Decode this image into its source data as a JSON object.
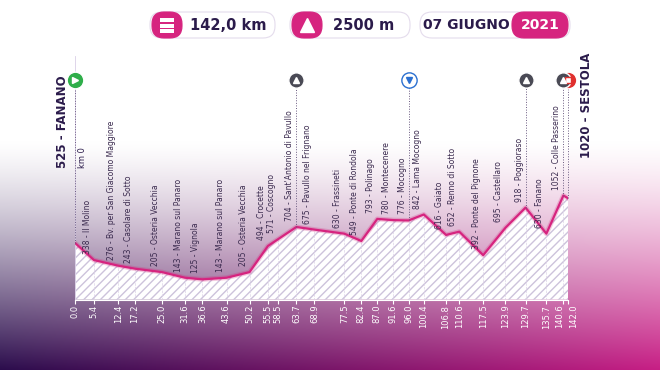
{
  "chart_data": {
    "type": "area",
    "header": {
      "distance": "142,0 km",
      "elevation_gain": "2500 m",
      "date": "07 GIUGNO",
      "year": "2021"
    },
    "start_note": "km 0",
    "x": [
      0.0,
      5.4,
      12.4,
      17.2,
      25.0,
      31.6,
      36.6,
      43.6,
      50.2,
      55.5,
      58.5,
      63.7,
      68.9,
      77.5,
      82.4,
      87.0,
      91.6,
      96.0,
      100.4,
      106.8,
      110.6,
      117.5,
      123.9,
      129.7,
      135.7,
      140.6,
      142.0
    ],
    "values": [
      525,
      338,
      276,
      243,
      205,
      143,
      125,
      143,
      205,
      494,
      571,
      704,
      675,
      630,
      549,
      793,
      780,
      776,
      842,
      616,
      652,
      392,
      695,
      918,
      630,
      1052,
      1020
    ],
    "annotations": [
      "525 - FANANO",
      "338 - Il Molino",
      "276 - Bv. per San Giacomo Maggiore",
      "243 - Casolare di Sotto",
      "205 - Osteria Vecchia",
      "143 - Marano sul Panaro",
      "125 - Vignola",
      "143 - Marano sul Panaro",
      "205 - Osteria Vecchia",
      "494 - Crocette",
      "571 - Coscogno",
      "704 - Sant'Antonio di Pavullo",
      "675 - Pavullo nel Frignano",
      "630 - Frassineti",
      "549 - Ponte di Rondola",
      "793 - Polinago",
      "780 - Montecenere",
      "776 - Mocogno",
      "842 - Lama Mocogno",
      "616 - Gaiato",
      "652 - Renno di Sotto",
      "392 - Ponte del Pignone",
      "695 - Castellaro",
      "918 - Poggioraso",
      "630 - Fanano",
      "1052 - Colle Passerino",
      "1020 - SESTOLA"
    ],
    "kom_km": [
      63.7,
      129.7,
      140.6
    ],
    "sprint_km": [
      96.0
    ],
    "color": "#d6247f",
    "xlim": [
      0.0,
      142.0
    ],
    "xticks": [
      {
        "value": 0.0,
        "label": "0.0"
      },
      {
        "value": 5.4,
        "label": "5.4"
      },
      {
        "value": 12.4,
        "label": "12.4"
      },
      {
        "value": 17.2,
        "label": "17.2"
      },
      {
        "value": 25.0,
        "label": "25.0"
      },
      {
        "value": 31.6,
        "label": "31.6"
      },
      {
        "value": 36.6,
        "label": "36.6"
      },
      {
        "value": 43.6,
        "label": "43.6"
      },
      {
        "value": 50.2,
        "label": "50.2"
      },
      {
        "value": 55.5,
        "label": "55.5"
      },
      {
        "value": 58.5,
        "label": "58.5"
      },
      {
        "value": 63.7,
        "label": "63.7"
      },
      {
        "value": 68.9,
        "label": "68.9"
      },
      {
        "value": 77.5,
        "label": "77.5"
      },
      {
        "value": 82.4,
        "label": "82.4"
      },
      {
        "value": 87.0,
        "label": "87.0"
      },
      {
        "value": 91.6,
        "label": "91.6"
      },
      {
        "value": 96.0,
        "label": "96.0"
      },
      {
        "value": 100.4,
        "label": "100.4"
      },
      {
        "value": 106.8,
        "label": "106.8"
      },
      {
        "value": 110.6,
        "label": "110.6"
      },
      {
        "value": 117.5,
        "label": "117.5"
      },
      {
        "value": 123.9,
        "label": "123.9"
      },
      {
        "value": 129.7,
        "label": "129.7"
      },
      {
        "value": 135.7,
        "label": "135.7"
      },
      {
        "value": 140.6,
        "label": "140.6"
      },
      {
        "value": 142.0,
        "label": "142.0"
      }
    ],
    "ylim": [
      -100,
      2600
    ],
    "yticks": [],
    "tick_labels": "x",
    "grid": false
  }
}
